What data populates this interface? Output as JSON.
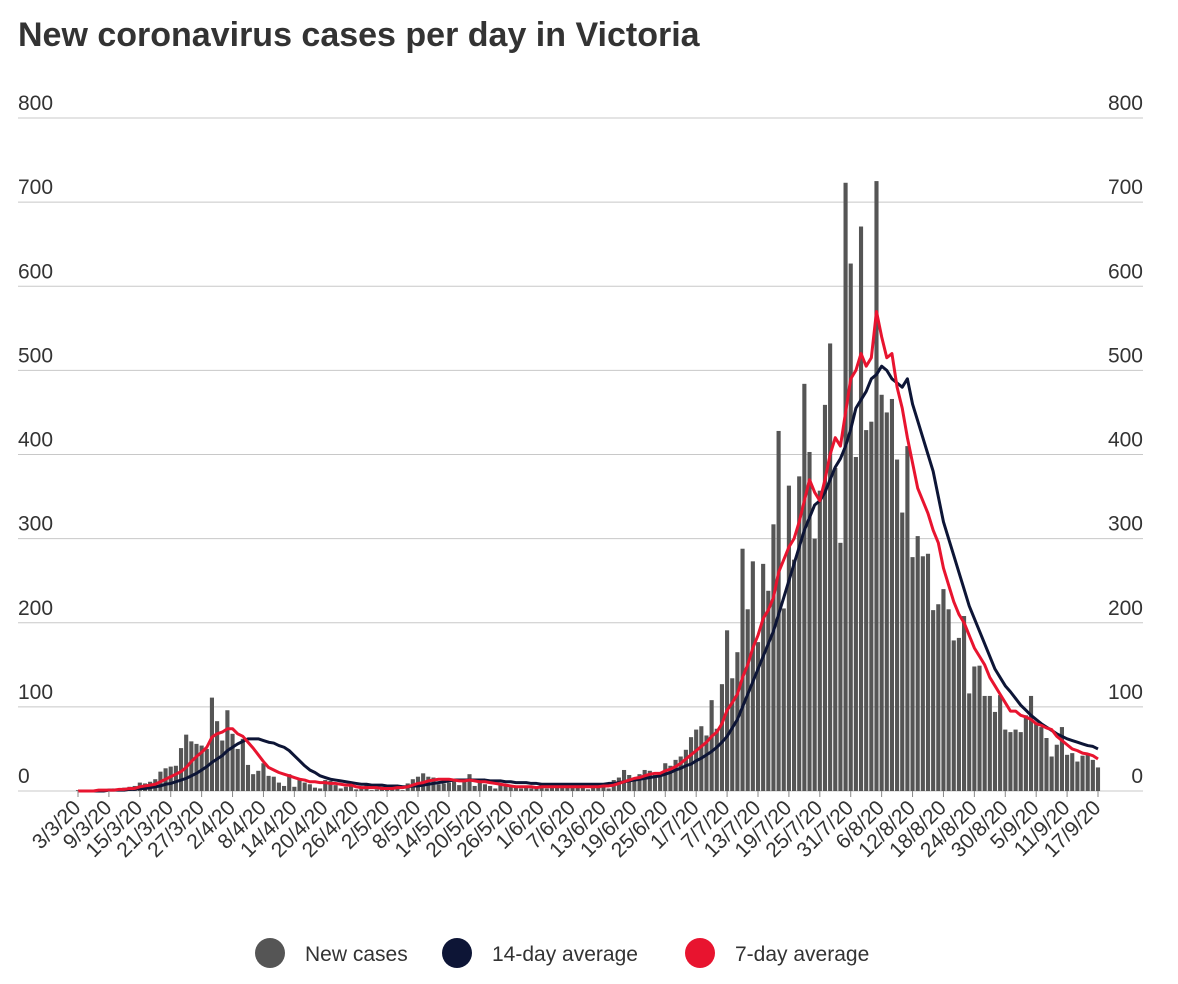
{
  "chart_data": {
    "type": "bar+line",
    "title": "New coronavirus cases per day in Victoria",
    "categories": [
      "3/3/20",
      null,
      null,
      null,
      null,
      null,
      "9/3/20",
      null,
      null,
      null,
      null,
      null,
      "15/3/20",
      null,
      null,
      null,
      null,
      null,
      "21/3/20",
      null,
      null,
      null,
      null,
      null,
      "27/3/20",
      null,
      null,
      null,
      null,
      null,
      "2/4/20",
      null,
      null,
      null,
      null,
      null,
      "8/4/20",
      null,
      null,
      null,
      null,
      null,
      "14/4/20",
      null,
      null,
      null,
      null,
      null,
      "20/4/20",
      null,
      null,
      null,
      null,
      null,
      "26/4/20",
      null,
      null,
      null,
      null,
      null,
      "2/5/20",
      null,
      null,
      null,
      null,
      null,
      "8/5/20",
      null,
      null,
      null,
      null,
      null,
      "14/5/20",
      null,
      null,
      null,
      null,
      null,
      "20/5/20",
      null,
      null,
      null,
      null,
      null,
      "26/5/20",
      null,
      null,
      null,
      null,
      null,
      "1/6/20",
      null,
      null,
      null,
      null,
      null,
      "7/6/20",
      null,
      null,
      null,
      null,
      null,
      "13/6/20",
      null,
      null,
      null,
      null,
      null,
      "19/6/20",
      null,
      null,
      null,
      null,
      null,
      "25/6/20",
      null,
      null,
      null,
      null,
      null,
      "1/7/20",
      null,
      null,
      null,
      null,
      null,
      "7/7/20",
      null,
      null,
      null,
      null,
      null,
      "13/7/20",
      null,
      null,
      null,
      null,
      null,
      "19/7/20",
      null,
      null,
      null,
      null,
      null,
      "25/7/20",
      null,
      null,
      null,
      null,
      null,
      "31/7/20",
      null,
      null,
      null,
      null,
      null,
      "6/8/20",
      null,
      null,
      null,
      null,
      null,
      "12/8/20",
      null,
      null,
      null,
      null,
      null,
      "18/8/20",
      null,
      null,
      null,
      null,
      null,
      "24/8/20",
      null,
      null,
      null,
      null,
      null,
      "30/8/20",
      null,
      null,
      null,
      null,
      null,
      "5/9/20",
      null,
      null,
      null,
      null,
      null,
      "11/9/20",
      null,
      null,
      null,
      null,
      null,
      "17/9/20"
    ],
    "series": [
      {
        "name": "New cases",
        "type": "bar",
        "color": "#555555",
        "values": [
          1,
          0,
          0,
          1,
          1,
          2,
          1,
          3,
          3,
          4,
          5,
          6,
          10,
          9,
          11,
          14,
          23,
          27,
          29,
          30,
          51,
          67,
          59,
          56,
          54,
          50,
          111,
          83,
          60,
          96,
          68,
          50,
          62,
          31,
          20,
          24,
          33,
          18,
          17,
          10,
          6,
          20,
          5,
          14,
          10,
          8,
          4,
          3,
          13,
          12,
          7,
          3,
          5,
          6,
          2,
          3,
          7,
          1,
          2,
          5,
          4,
          3,
          5,
          1,
          9,
          14,
          17,
          21,
          17,
          16,
          8,
          9,
          10,
          14,
          7,
          12,
          20,
          6,
          11,
          8,
          6,
          3,
          7,
          7,
          5,
          4,
          3,
          5,
          3,
          4,
          8,
          3,
          4,
          4,
          6,
          8,
          4,
          7,
          5,
          2,
          8,
          4,
          8,
          3,
          13,
          16,
          25,
          19,
          13,
          20,
          25,
          24,
          19,
          17,
          33,
          30,
          37,
          41,
          49,
          64,
          73,
          77,
          66,
          108,
          74,
          127,
          191,
          134,
          165,
          288,
          216,
          273,
          177,
          270,
          238,
          317,
          428,
          217,
          363,
          275,
          374,
          484,
          403,
          300,
          357,
          459,
          532,
          384,
          295,
          723,
          627,
          397,
          671,
          429,
          439,
          725,
          471,
          450,
          466,
          394,
          331,
          410,
          278,
          303,
          279,
          282,
          215,
          222,
          240,
          216,
          179,
          182,
          208,
          116,
          148,
          149,
          113,
          113,
          94,
          114,
          73,
          70,
          73,
          70,
          90,
          113,
          81,
          76,
          63,
          41,
          55,
          76,
          43,
          45,
          35,
          42,
          45,
          37,
          28
        ]
      },
      {
        "name": "14-day average",
        "type": "line",
        "color": "#0d1536",
        "values": [
          0,
          0,
          0,
          0,
          0,
          0,
          1,
          1,
          1,
          1,
          2,
          2,
          3,
          3,
          4,
          5,
          6,
          8,
          9,
          11,
          13,
          15,
          18,
          21,
          25,
          29,
          34,
          38,
          42,
          48,
          52,
          56,
          59,
          62,
          62,
          62,
          60,
          58,
          57,
          54,
          52,
          48,
          42,
          36,
          30,
          25,
          22,
          18,
          16,
          14,
          13,
          12,
          11,
          10,
          9,
          8,
          8,
          7,
          7,
          7,
          6,
          6,
          6,
          5,
          5,
          6,
          6,
          7,
          8,
          9,
          10,
          11,
          12,
          13,
          13,
          13,
          13,
          13,
          13,
          13,
          12,
          12,
          12,
          11,
          11,
          10,
          10,
          10,
          9,
          9,
          8,
          8,
          8,
          8,
          8,
          8,
          8,
          8,
          8,
          8,
          8,
          8,
          8,
          9,
          9,
          10,
          11,
          12,
          13,
          14,
          15,
          16,
          17,
          18,
          20,
          22,
          25,
          27,
          30,
          32,
          36,
          39,
          43,
          47,
          52,
          58,
          65,
          75,
          85,
          100,
          115,
          130,
          145,
          160,
          175,
          190,
          210,
          230,
          250,
          270,
          290,
          310,
          325,
          340,
          345,
          355,
          370,
          385,
          395,
          410,
          430,
          455,
          465,
          475,
          490,
          495,
          505,
          500,
          490,
          485,
          480,
          490,
          460,
          440,
          420,
          400,
          380,
          350,
          320,
          300,
          280,
          260,
          240,
          220,
          205,
          190,
          175,
          160,
          145,
          135,
          125,
          118,
          110,
          102,
          96,
          90,
          85,
          80,
          76,
          72,
          68,
          65,
          62,
          60,
          58,
          56,
          54,
          53,
          50
        ]
      },
      {
        "name": "7-day average",
        "type": "line",
        "color": "#e8142f",
        "values": [
          0,
          0,
          0,
          0,
          1,
          1,
          1,
          1,
          2,
          2,
          3,
          3,
          5,
          6,
          7,
          8,
          11,
          14,
          17,
          20,
          23,
          28,
          35,
          41,
          46,
          52,
          64,
          68,
          70,
          74,
          74,
          68,
          65,
          58,
          51,
          43,
          35,
          28,
          25,
          22,
          20,
          18,
          16,
          14,
          13,
          11,
          11,
          10,
          10,
          9,
          9,
          8,
          7,
          7,
          5,
          4,
          4,
          4,
          4,
          3,
          3,
          3,
          4,
          4,
          5,
          7,
          9,
          10,
          12,
          13,
          14,
          14,
          14,
          13,
          12,
          12,
          13,
          12,
          11,
          11,
          10,
          9,
          8,
          7,
          6,
          5,
          5,
          5,
          5,
          4,
          5,
          5,
          5,
          5,
          5,
          5,
          5,
          5,
          5,
          5,
          5,
          5,
          6,
          6,
          7,
          9,
          11,
          13,
          15,
          16,
          18,
          20,
          21,
          21,
          24,
          26,
          29,
          33,
          38,
          43,
          48,
          53,
          58,
          65,
          70,
          80,
          96,
          105,
          115,
          135,
          150,
          170,
          185,
          205,
          215,
          230,
          260,
          275,
          290,
          300,
          320,
          345,
          370,
          355,
          345,
          370,
          400,
          420,
          410,
          450,
          490,
          500,
          520,
          505,
          515,
          570,
          540,
          515,
          520,
          480,
          455,
          420,
          390,
          360,
          345,
          330,
          310,
          295,
          265,
          245,
          225,
          210,
          200,
          185,
          170,
          160,
          150,
          135,
          125,
          115,
          105,
          95,
          95,
          90,
          88,
          85,
          80,
          78,
          75,
          73,
          65,
          60,
          55,
          50,
          48,
          45,
          44,
          42,
          38
        ]
      }
    ],
    "ylim": [
      0,
      800
    ],
    "yticks": [
      0,
      100,
      200,
      300,
      400,
      500,
      600,
      700,
      800
    ],
    "y2lim": [
      0,
      800
    ],
    "y2ticks": [
      0,
      100,
      200,
      300,
      400,
      500,
      600,
      700,
      800
    ],
    "grid": true,
    "legend": "bottom"
  }
}
